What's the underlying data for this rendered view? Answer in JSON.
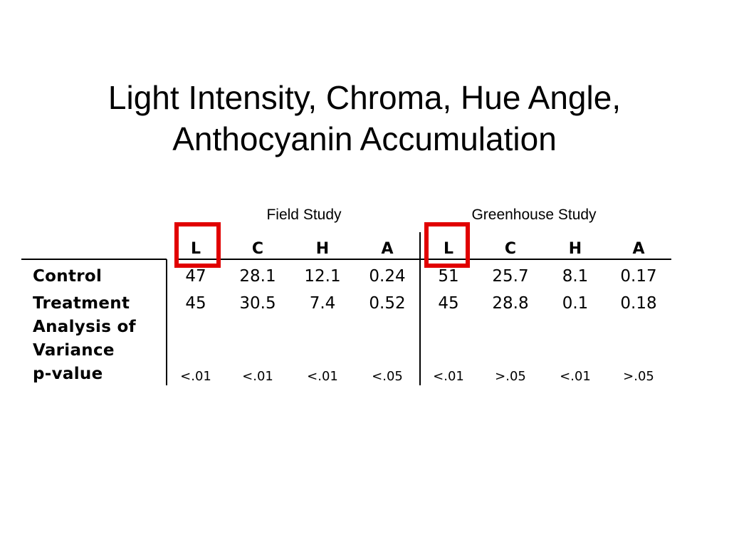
{
  "slide": {
    "title_line1": "Light Intensity, Chroma, Hue Angle,",
    "title_line2": "Anthocyanin Accumulation"
  },
  "table": {
    "groups": [
      "Field Study",
      "Greenhouse Study"
    ],
    "columns": [
      "L",
      "C",
      "H",
      "A",
      "L",
      "C",
      "H",
      "A"
    ],
    "rows": [
      {
        "label": "Control",
        "values": [
          "47",
          "28.1",
          "12.1",
          "0.24",
          "51",
          "25.7",
          "8.1",
          "0.17"
        ]
      },
      {
        "label": "Treatment",
        "values": [
          "45",
          "30.5",
          "7.4",
          "0.52",
          "45",
          "28.8",
          "0.1",
          "0.18"
        ]
      },
      {
        "label_lines": [
          "Analysis of",
          "Variance",
          "p-value"
        ],
        "values": [
          "<.01",
          "<.01",
          "<.01",
          "<.05",
          "<.01",
          ">.05",
          "<.01",
          ">.05"
        ]
      }
    ],
    "highlight_color": "#e10000",
    "highlighted_columns": [
      "L (Field Study)",
      "L (Greenhouse Study)"
    ]
  }
}
